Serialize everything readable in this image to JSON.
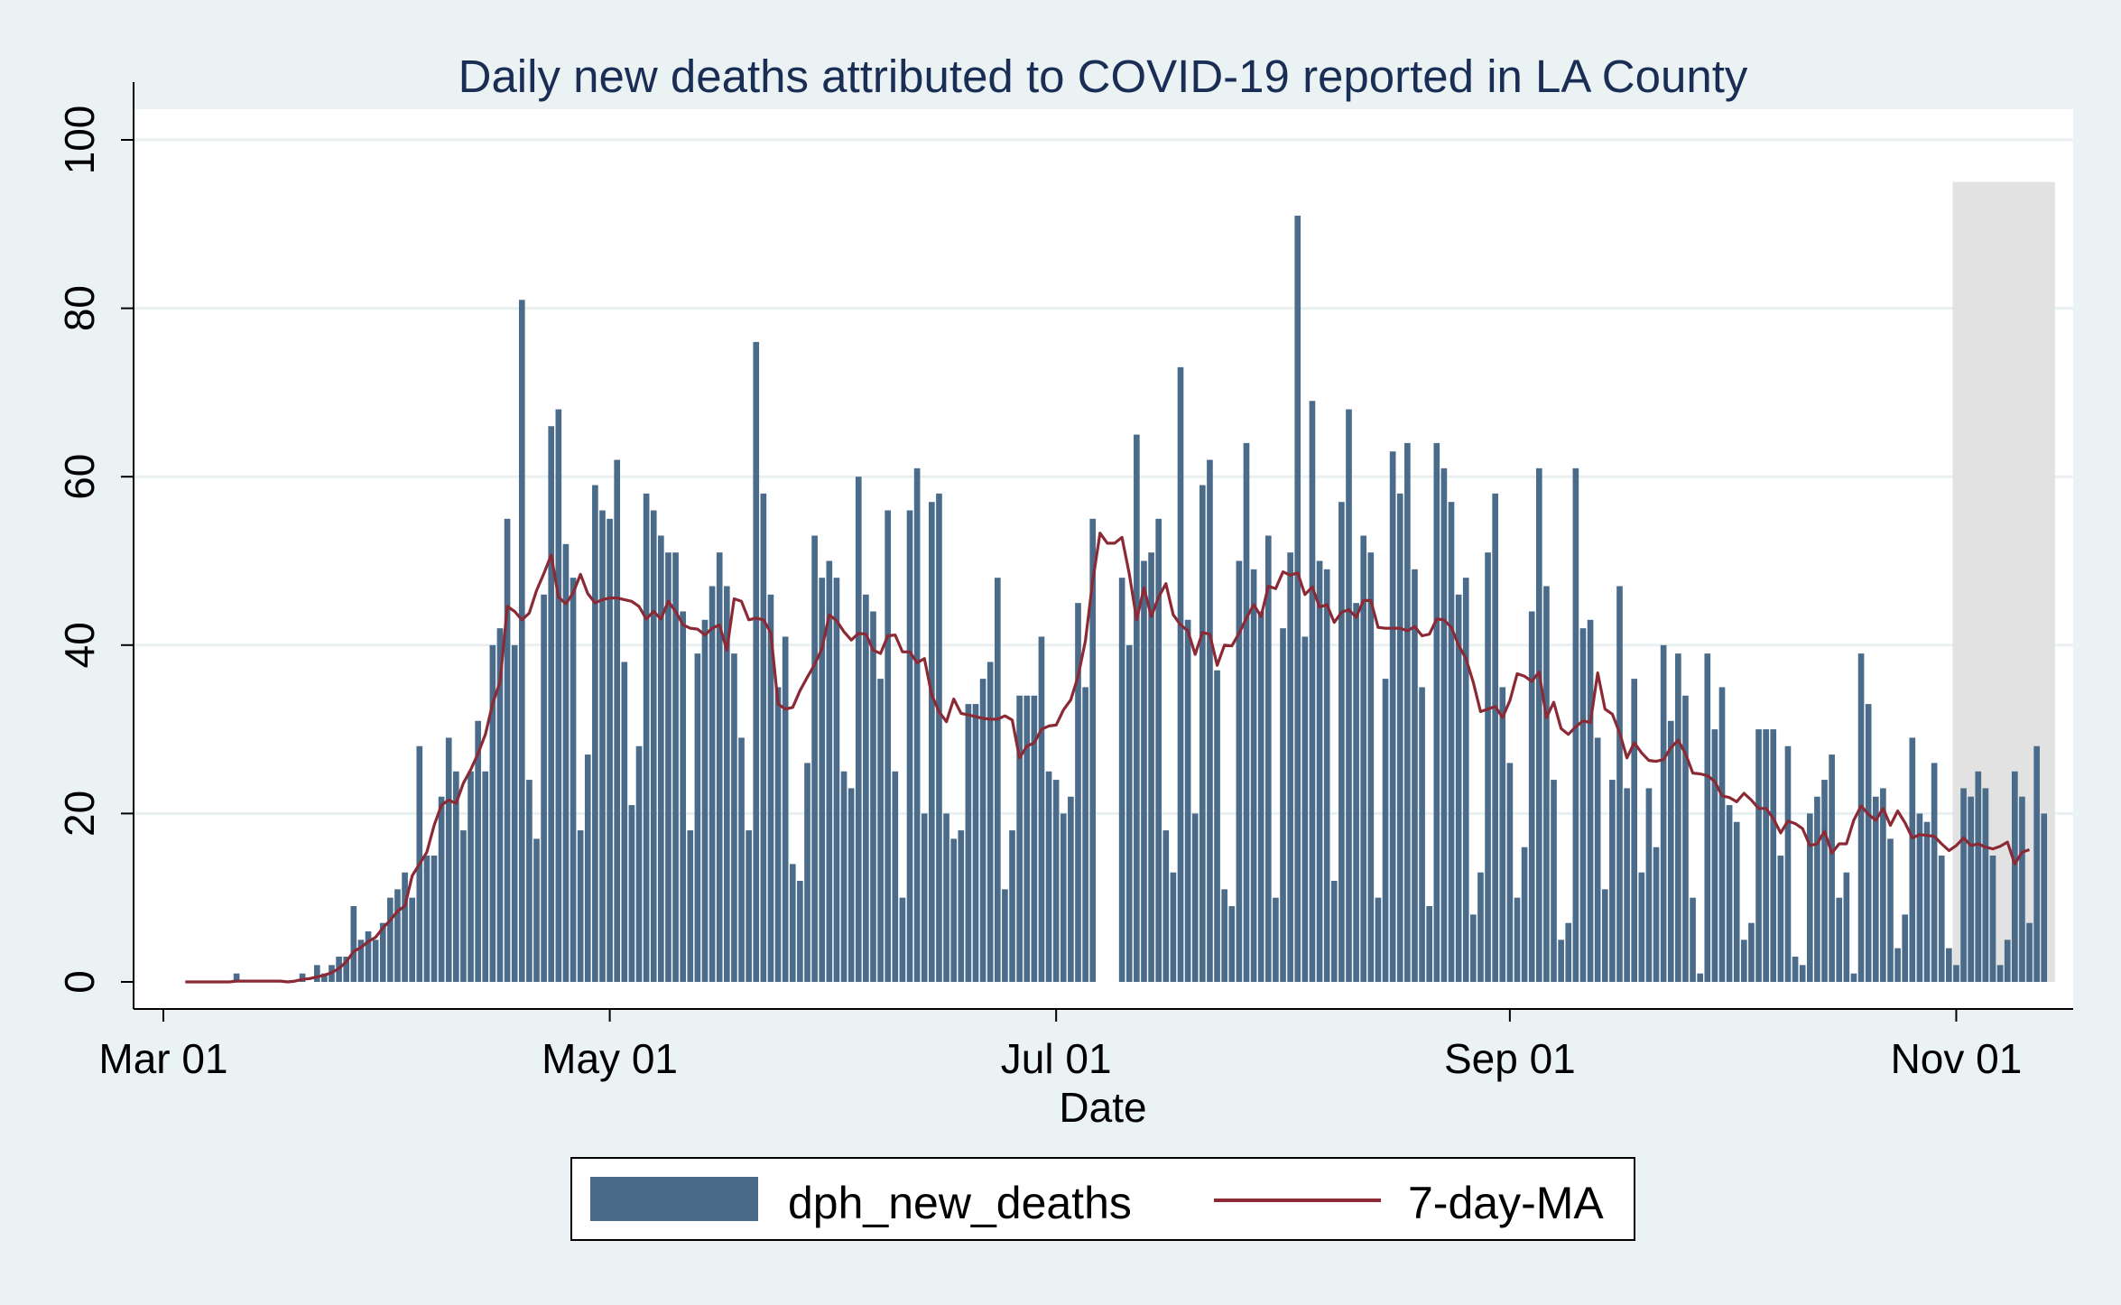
{
  "chart_data": {
    "type": "bar",
    "title": "Daily new deaths attributed to COVID-19 reported in LA County",
    "xlabel": "Date",
    "ylabel": "",
    "ylim": [
      0,
      100
    ],
    "y_ticks": [
      "0",
      "20",
      "40",
      "60",
      "80",
      "100"
    ],
    "x_ticks": [
      {
        "label": "Mar 01",
        "date": "2020-03-01"
      },
      {
        "label": "May 01",
        "date": "2020-05-01"
      },
      {
        "label": "Jul 01",
        "date": "2020-07-01"
      },
      {
        "label": "Sep 01",
        "date": "2020-09-01"
      },
      {
        "label": "Nov 01",
        "date": "2020-11-01"
      }
    ],
    "grid": true,
    "legend_position": "bottom",
    "series": [
      {
        "name": "dph_new_deaths",
        "kind": "bar",
        "color": "#4a6b8a",
        "start_date": "2020-03-04",
        "values": [
          0,
          0,
          0,
          0,
          0,
          0,
          0,
          1,
          0,
          0,
          0,
          0,
          0,
          0,
          0,
          0,
          1,
          0,
          2,
          1,
          2,
          3,
          3,
          9,
          5,
          6,
          5,
          7,
          10,
          11,
          13,
          10,
          28,
          15,
          15,
          22,
          29,
          25,
          18,
          25,
          31,
          25,
          40,
          42,
          55,
          40,
          81,
          24,
          17,
          46,
          66,
          68,
          52,
          48,
          18,
          27,
          59,
          56,
          55,
          62,
          38,
          21,
          28,
          58,
          56,
          53,
          51,
          51,
          44,
          18,
          39,
          43,
          47,
          51,
          47,
          39,
          29,
          18,
          76,
          58,
          46,
          35,
          41,
          14,
          12,
          26,
          53,
          48,
          50,
          48,
          25,
          23,
          60,
          46,
          44,
          36,
          56,
          25,
          10,
          56,
          61,
          20,
          57,
          58,
          20,
          17,
          18,
          33,
          33,
          36,
          38,
          48,
          11,
          18,
          34,
          34,
          34,
          41,
          25,
          24,
          20,
          22,
          45,
          35,
          55,
          0,
          0,
          0,
          48,
          40,
          65,
          50,
          51,
          55,
          18,
          13,
          73,
          43,
          20,
          59,
          62,
          37,
          11,
          9,
          50,
          64,
          49,
          44,
          53,
          10,
          42,
          51,
          91,
          41,
          69,
          50,
          49,
          12,
          57,
          68,
          45,
          53,
          51,
          10,
          36,
          63,
          58,
          64,
          49,
          35,
          9,
          64,
          61,
          57,
          46,
          48,
          8,
          13,
          51,
          58,
          35,
          26,
          10,
          16,
          44,
          61,
          47,
          24,
          5,
          7,
          61,
          42,
          43,
          29,
          11,
          24,
          47,
          23,
          36,
          13,
          23,
          16,
          40,
          31,
          39,
          34,
          10,
          1,
          39,
          30,
          35,
          21,
          19,
          5,
          7,
          30,
          30,
          30,
          15,
          28,
          3,
          2,
          20,
          22,
          24,
          27,
          10,
          13,
          1,
          39,
          33,
          22,
          23,
          17,
          4,
          8,
          29,
          20,
          19,
          26,
          15,
          4,
          2,
          23,
          22,
          25,
          23,
          15,
          2,
          5,
          25,
          22,
          7,
          28,
          20
        ]
      },
      {
        "name": "7-day-MA",
        "kind": "line",
        "color": "#8b2a35",
        "start_date": "2020-03-04",
        "values": [
          0,
          0,
          0,
          0,
          0,
          0,
          0,
          0.1,
          0.1,
          0.1,
          0.1,
          0.1,
          0.1,
          0.1,
          0,
          0.1,
          0.3,
          0.4,
          0.6,
          0.8,
          1.1,
          1.6,
          2.4,
          3.6,
          4.1,
          4.8,
          5.3,
          6.4,
          7.3,
          8.4,
          9,
          12.6,
          14,
          15.4,
          18.6,
          21,
          21.6,
          21.2,
          23.6,
          25.2,
          27.1,
          29.4,
          33.1,
          35.6,
          44.6,
          44,
          43,
          43.8,
          46.5,
          48.5,
          50.7,
          45.7,
          44.9,
          46.2,
          48.4,
          46.1,
          45,
          45.4,
          45.6,
          45.6,
          45.4,
          45.2,
          44.6,
          43.1,
          44,
          43.1,
          45.2,
          44,
          42.4,
          42,
          41.9,
          41.2,
          42,
          42.4,
          39.4,
          45.5,
          45.2,
          43,
          43.2,
          43,
          41.5,
          33,
          32.4,
          32.6,
          34.6,
          36.2,
          37.7,
          39.6,
          43.6,
          42.9,
          41.6,
          40.6,
          41.4,
          41.3,
          39.4,
          39,
          41.1,
          41.2,
          39.2,
          39.2,
          37.9,
          38.4,
          34.1,
          32.1,
          30.9,
          33.6,
          31.9,
          31.7,
          31.5,
          31.3,
          31.2,
          31.2,
          31.6,
          31.1,
          26.6,
          28,
          28.4,
          30,
          30.4,
          30.5,
          32.3,
          33.5,
          36.3,
          40.5,
          47.6,
          53.3,
          52.1,
          52.1,
          52.8,
          48.4,
          43,
          46.8,
          43.4,
          45.7,
          47.3,
          43.6,
          42.4,
          41.7,
          38.9,
          41.5,
          41.3,
          37.6,
          40,
          39.9,
          41.4,
          43.2,
          44.8,
          43.4,
          47,
          46.7,
          48.7,
          48.3,
          48.6,
          46,
          46.9,
          44.5,
          44.8,
          42.7,
          43.9,
          44.2,
          43.3,
          45.3,
          45.3,
          42.1,
          42,
          42,
          42,
          41.7,
          42.2,
          41.1,
          41.3,
          43.1,
          43,
          42.1,
          40,
          38.4,
          35.6,
          32.1,
          32.4,
          32.7,
          31.4,
          33.4,
          36.6,
          36.3,
          35.7,
          36.8,
          31.4,
          33.2,
          30.1,
          29.4,
          30.3,
          31,
          30.8,
          36.7,
          32.4,
          31.8,
          29.6,
          26.6,
          28.4,
          27.2,
          26.3,
          26.2,
          26.4,
          27.8,
          28.7,
          27.1,
          24.8,
          24.7,
          24.5,
          23.8,
          22.1,
          21.9,
          21.4,
          22.4,
          21.6,
          20.6,
          20.6,
          19.4,
          17.7,
          19.1,
          18.8,
          18.2,
          16.2,
          16.4,
          17.9,
          15.3,
          16.4,
          16.4,
          19.2,
          20.9,
          19.9,
          19.2,
          20.6,
          18.6,
          20.3,
          18.9,
          17.1,
          17.5,
          17.4,
          17.3,
          16.4,
          15.6,
          16.2,
          17.1,
          16.2,
          16.4,
          16,
          15.8,
          16.1,
          16.6,
          14,
          15.4,
          15.7
        ]
      }
    ],
    "shaded_region": {
      "start_date": "2020-11-01",
      "end_date": "2020-11-14",
      "y_top": 95
    }
  },
  "legend": {
    "bar_label": "dph_new_deaths",
    "line_label": "7-day-MA"
  },
  "colors": {
    "background": "#eaf2f3",
    "plot_background": "#ffffff",
    "gridline": "#e8f0f1",
    "shade": "#e2e2e2",
    "title": "#1a2d55"
  }
}
